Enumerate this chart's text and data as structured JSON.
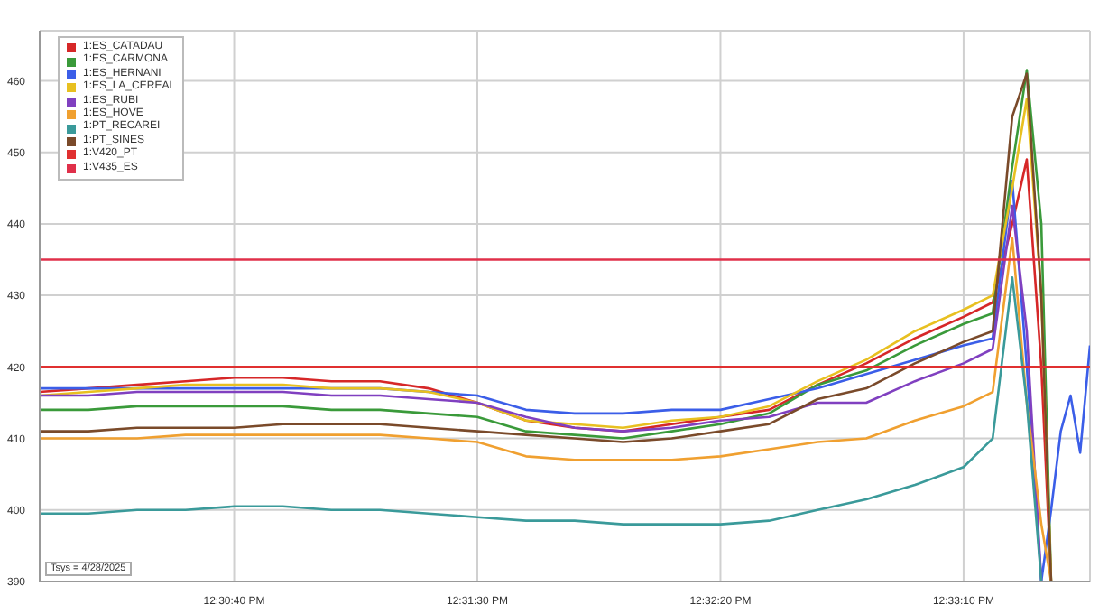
{
  "chart_data": {
    "type": "line",
    "annotations": [
      "Tsys = 4/28/2025"
    ],
    "x": [
      12.5,
      12.50278,
      12.50556,
      12.50833,
      12.51111,
      12.51389,
      12.51667,
      12.51944,
      12.52222,
      12.525,
      12.52778,
      12.53056,
      12.53333,
      12.53611,
      12.53889,
      12.54167,
      12.54444,
      12.54722,
      12.55,
      12.55278,
      12.55444,
      12.55556,
      12.55639,
      12.55722,
      12.55778,
      12.55833,
      12.55889,
      12.55944,
      12.56
    ],
    "series": [
      {
        "name": "1:ES_CATADAU",
        "color": "#d62728",
        "values": [
          416.5,
          417,
          417.5,
          418,
          418.5,
          418.5,
          418,
          418,
          417,
          415,
          412.5,
          411.5,
          411,
          412,
          413,
          414,
          417.5,
          420.5,
          424,
          427,
          429,
          440,
          449,
          420,
          390,
          null,
          null,
          null,
          null
        ]
      },
      {
        "name": "1:ES_CARMONA",
        "color": "#3a9a3a",
        "values": [
          414,
          414,
          414.5,
          414.5,
          414.5,
          414.5,
          414,
          414,
          413.5,
          413,
          411,
          410.5,
          410,
          411,
          412,
          413.5,
          417.5,
          419.5,
          423,
          426,
          427.5,
          448,
          461.5,
          440,
          390,
          null,
          null,
          null,
          null
        ]
      },
      {
        "name": "1:ES_HERNANI",
        "color": "#3b5ee8",
        "values": [
          417,
          417,
          417,
          417,
          417,
          417,
          417,
          417,
          416.5,
          416,
          414,
          413.5,
          413.5,
          414,
          414,
          415.5,
          417,
          419,
          421,
          423,
          424,
          446,
          420,
          390,
          400,
          411,
          416,
          408,
          423
        ]
      },
      {
        "name": "1:ES_LA_CEREAL",
        "color": "#e8c020",
        "values": [
          416,
          416.5,
          417,
          417.5,
          417.5,
          417.5,
          417,
          417,
          416.5,
          415,
          412.5,
          412,
          411.5,
          412.5,
          413,
          414.5,
          418,
          421,
          425,
          428,
          430,
          445,
          457.5,
          430,
          390,
          null,
          null,
          null,
          null
        ]
      },
      {
        "name": "1:ES_RUBI",
        "color": "#8040c0",
        "values": [
          416,
          416,
          416.5,
          416.5,
          416.5,
          416.5,
          416,
          416,
          415.5,
          415,
          413,
          411.5,
          411,
          411.5,
          412.5,
          413,
          415,
          415,
          418,
          420.5,
          422.5,
          442.5,
          425,
          390,
          null,
          null,
          null,
          null,
          null
        ]
      },
      {
        "name": "1:ES_HOVE",
        "color": "#f0a030",
        "values": [
          410,
          410,
          410,
          410.5,
          410.5,
          410.5,
          410.5,
          410.5,
          410,
          409.5,
          407.5,
          407,
          407,
          407,
          407.5,
          408.5,
          409.5,
          410,
          412.5,
          414.5,
          416.5,
          438,
          415,
          398,
          390,
          null,
          null,
          null,
          null
        ]
      },
      {
        "name": "1:PT_RECAREI",
        "color": "#3a9a9a",
        "values": [
          399.5,
          399.5,
          400,
          400,
          400.5,
          400.5,
          400,
          400,
          399.5,
          399,
          398.5,
          398.5,
          398,
          398,
          398,
          398.5,
          400,
          401.5,
          403.5,
          406,
          410,
          432.5,
          415,
          390,
          null,
          null,
          null,
          null,
          null
        ]
      },
      {
        "name": "1:PT_SINES",
        "color": "#7a4a2a",
        "values": [
          411,
          411,
          411.5,
          411.5,
          411.5,
          412,
          412,
          412,
          411.5,
          411,
          410.5,
          410,
          409.5,
          410,
          411,
          412,
          415.5,
          417,
          420.5,
          423.5,
          425,
          455,
          461,
          430,
          390,
          null,
          null,
          null,
          null
        ]
      },
      {
        "name": "1:V420_PT",
        "color": "#e03030",
        "values": [
          420,
          420,
          420,
          420,
          420,
          420,
          420,
          420,
          420,
          420,
          420,
          420,
          420,
          420,
          420,
          420,
          420,
          420,
          420,
          420,
          420,
          420,
          420,
          420,
          420,
          420,
          420,
          420,
          420
        ]
      },
      {
        "name": "1:V435_ES",
        "color": "#e0304a",
        "values": [
          435,
          435,
          435,
          435,
          435,
          435,
          435,
          435,
          435,
          435,
          435,
          435,
          435,
          435,
          435,
          435,
          435,
          435,
          435,
          435,
          435,
          435,
          435,
          435,
          435,
          435,
          435,
          435,
          435
        ]
      }
    ],
    "xlim": [
      12.5,
      12.56
    ],
    "xticks": [
      {
        "value": 12.51111,
        "label": "12:30:40 PM"
      },
      {
        "value": 12.525,
        "label": "12:31:30 PM"
      },
      {
        "value": 12.53889,
        "label": "12:32:20 PM"
      },
      {
        "value": 12.55278,
        "label": "12:33:10 PM"
      }
    ],
    "ylim": [
      390,
      467
    ],
    "yticks": [
      390,
      400,
      410,
      420,
      430,
      440,
      450,
      460
    ],
    "grid": true,
    "legend": "top left",
    "marker": "none",
    "line_style": "solid"
  }
}
